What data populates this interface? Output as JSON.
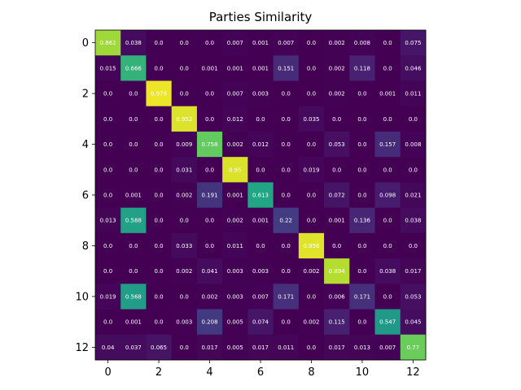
{
  "chart_data": {
    "type": "heatmap",
    "title": "Parties Similarity",
    "xlabel": "",
    "ylabel": "",
    "xticks": [
      0,
      2,
      4,
      6,
      8,
      10,
      12
    ],
    "yticks": [
      0,
      2,
      4,
      6,
      8,
      10,
      12
    ],
    "colormap": "viridis",
    "value_range": [
      0,
      1
    ],
    "cell_labels": [
      [
        "0.862",
        "0.038",
        "0.0",
        "0.0",
        "0.0",
        "0.007",
        "0.001",
        "0.007",
        "0.0",
        "0.002",
        "0.008",
        "0.0",
        "0.075"
      ],
      [
        "0.015",
        "0.666",
        "0.0",
        "0.0",
        "0.001",
        "0.001",
        "0.001",
        "0.151",
        "0.0",
        "0.002",
        "0.118",
        "0.0",
        "0.046"
      ],
      [
        "0.0",
        "0.0",
        "0.976",
        "0.0",
        "0.0",
        "0.007",
        "0.003",
        "0.0",
        "0.0",
        "0.002",
        "0.0",
        "0.001",
        "0.011"
      ],
      [
        "0.0",
        "0.0",
        "0.0",
        "0.952",
        "0.0",
        "0.012",
        "0.0",
        "0.0",
        "0.035",
        "0.0",
        "0.0",
        "0.0",
        "0.0"
      ],
      [
        "0.0",
        "0.0",
        "0.0",
        "0.009",
        "0.758",
        "0.002",
        "0.012",
        "0.0",
        "0.0",
        "0.053",
        "0.0",
        "0.157",
        "0.008"
      ],
      [
        "0.0",
        "0.0",
        "0.0",
        "0.031",
        "0.0",
        "0.95",
        "0.0",
        "0.0",
        "0.019",
        "0.0",
        "0.0",
        "0.0",
        "0.0"
      ],
      [
        "0.0",
        "0.001",
        "0.0",
        "0.002",
        "0.191",
        "0.001",
        "0.613",
        "0.0",
        "0.0",
        "0.072",
        "0.0",
        "0.098",
        "0.021"
      ],
      [
        "0.013",
        "0.588",
        "0.0",
        "0.0",
        "0.0",
        "0.002",
        "0.001",
        "0.22",
        "0.0",
        "0.001",
        "0.136",
        "0.0",
        "0.038"
      ],
      [
        "0.0",
        "0.0",
        "0.0",
        "0.033",
        "0.0",
        "0.011",
        "0.0",
        "0.0",
        "0.956",
        "0.0",
        "0.0",
        "0.0",
        "0.0"
      ],
      [
        "0.0",
        "0.0",
        "0.0",
        "0.002",
        "0.041",
        "0.003",
        "0.003",
        "0.0",
        "0.002",
        "0.894",
        "0.0",
        "0.038",
        "0.017"
      ],
      [
        "0.019",
        "0.568",
        "0.0",
        "0.0",
        "0.002",
        "0.003",
        "0.007",
        "0.171",
        "0.0",
        "0.006",
        "0.171",
        "0.0",
        "0.053"
      ],
      [
        "0.0",
        "0.001",
        "0.0",
        "0.003",
        "0.208",
        "0.005",
        "0.074",
        "0.0",
        "0.002",
        "0.115",
        "0.0",
        "0.547",
        "0.045"
      ],
      [
        "0.04",
        "0.037",
        "0.065",
        "0.0",
        "0.017",
        "0.005",
        "0.017",
        "0.011",
        "0.0",
        "0.017",
        "0.013",
        "0.007",
        "0.77"
      ]
    ]
  }
}
